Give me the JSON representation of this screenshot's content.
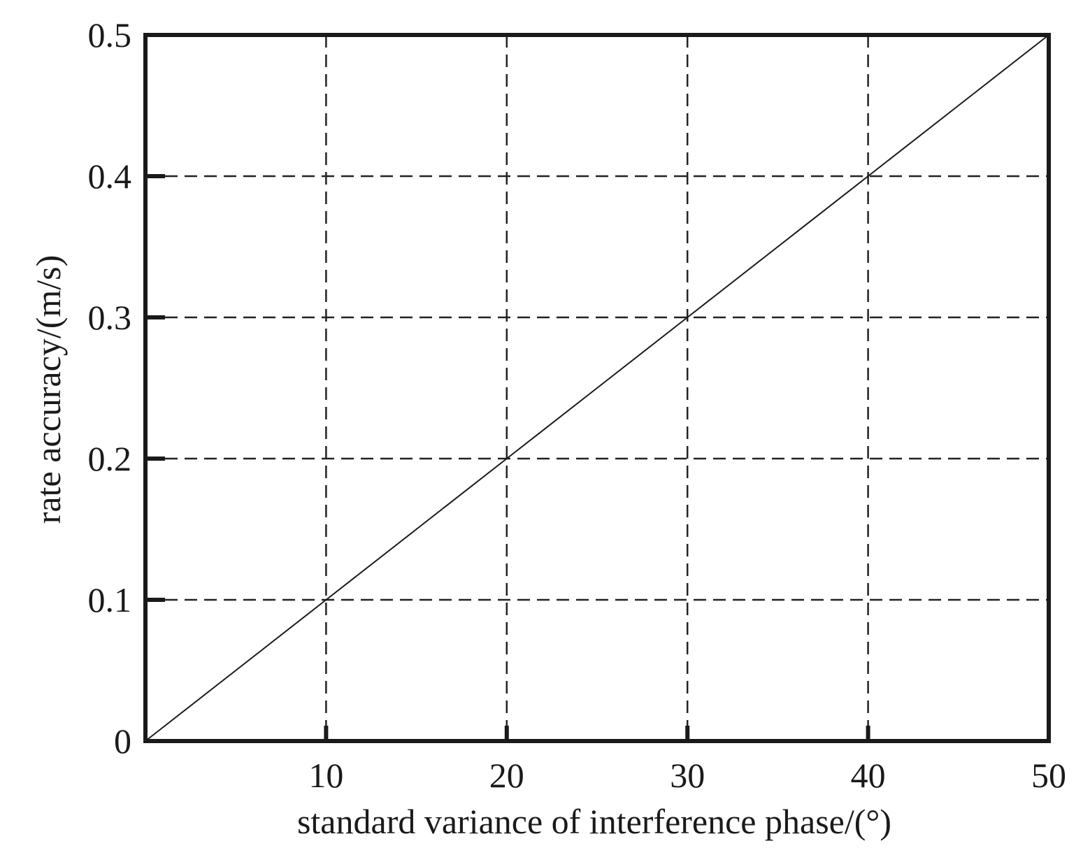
{
  "chart_data": {
    "type": "line",
    "title": "",
    "xlabel": "standard variance of interference phase/(°)",
    "ylabel": "rate accuracy/(m/s)",
    "xlim": [
      0,
      50
    ],
    "ylim": [
      0,
      0.5
    ],
    "x_ticks": [
      10,
      20,
      30,
      40,
      50
    ],
    "x_tick_labels": [
      "10",
      "20",
      "30",
      "40",
      "50"
    ],
    "y_ticks": [
      0,
      0.1,
      0.2,
      0.3,
      0.4,
      0.5
    ],
    "y_tick_labels": [
      "0",
      "0.1",
      "0.2",
      "0.3",
      "0.4",
      "0.5"
    ],
    "grid": true,
    "grid_style": "dashed",
    "series": [
      {
        "x": [
          0,
          5,
          10,
          15,
          20,
          25,
          30,
          35,
          40,
          45,
          50
        ],
        "y": [
          0,
          0.05,
          0.1,
          0.15,
          0.2,
          0.25,
          0.3,
          0.35,
          0.4,
          0.45,
          0.5
        ],
        "color": "#1a1a1a"
      }
    ]
  }
}
